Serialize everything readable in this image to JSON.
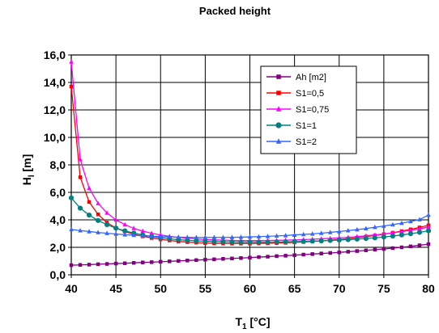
{
  "chart_data": {
    "type": "line",
    "title": "Packed height",
    "xlabel_main": "T",
    "xlabel_sub": "1",
    "xlabel_unit": " [°C]",
    "ylabel_main": "H",
    "ylabel_sub": "l",
    "ylabel_unit": " [m]",
    "xlim": [
      40,
      80
    ],
    "ylim": [
      0,
      16
    ],
    "x_ticks": [
      40,
      45,
      50,
      55,
      60,
      65,
      70,
      75,
      80
    ],
    "x_tick_labels": [
      "40",
      "45",
      "50",
      "55",
      "60",
      "65",
      "70",
      "75",
      "80"
    ],
    "y_ticks": [
      0,
      2,
      4,
      6,
      8,
      10,
      12,
      14,
      16
    ],
    "y_tick_labels": [
      "0,0",
      "2,0",
      "4,0",
      "6,0",
      "8,0",
      "10,0",
      "12,0",
      "14,0",
      "16,0"
    ],
    "grid": true,
    "legend_position": "top-right",
    "series": [
      {
        "name": "Ah  [m2]",
        "color": "#800080",
        "marker": "square",
        "x": [
          40,
          41,
          42,
          43,
          44,
          45,
          46,
          47,
          48,
          49,
          50,
          51,
          52,
          53,
          54,
          55,
          56,
          57,
          58,
          59,
          60,
          61,
          62,
          63,
          64,
          65,
          66,
          67,
          68,
          69,
          70,
          71,
          72,
          73,
          74,
          75,
          76,
          77,
          78,
          79,
          80
        ],
        "y": [
          0.7,
          0.72,
          0.74,
          0.77,
          0.79,
          0.82,
          0.84,
          0.87,
          0.9,
          0.92,
          0.95,
          0.98,
          1.01,
          1.04,
          1.07,
          1.1,
          1.13,
          1.16,
          1.19,
          1.22,
          1.25,
          1.29,
          1.32,
          1.36,
          1.39,
          1.43,
          1.47,
          1.51,
          1.55,
          1.59,
          1.63,
          1.68,
          1.73,
          1.78,
          1.83,
          1.88,
          1.94,
          2.0,
          2.07,
          2.15,
          2.23
        ]
      },
      {
        "name": "S1=0,5",
        "color": "#FF0000",
        "marker": "square",
        "x": [
          40,
          41,
          42,
          43,
          44,
          45,
          46,
          47,
          48,
          49,
          50,
          51,
          52,
          53,
          54,
          55,
          56,
          57,
          58,
          59,
          60,
          61,
          62,
          63,
          64,
          65,
          66,
          67,
          68,
          69,
          70,
          71,
          72,
          73,
          74,
          75,
          76,
          77,
          78,
          79,
          80
        ],
        "y": [
          13.7,
          7.1,
          5.3,
          4.4,
          3.8,
          3.4,
          3.15,
          2.95,
          2.8,
          2.68,
          2.58,
          2.5,
          2.43,
          2.38,
          2.34,
          2.31,
          2.29,
          2.28,
          2.27,
          2.27,
          2.27,
          2.28,
          2.29,
          2.31,
          2.33,
          2.36,
          2.39,
          2.43,
          2.47,
          2.52,
          2.57,
          2.63,
          2.7,
          2.78,
          2.86,
          2.96,
          3.06,
          3.18,
          3.31,
          3.45,
          3.6
        ]
      },
      {
        "name": "S1=0,75",
        "color": "#FF00FF",
        "marker": "triangle",
        "x": [
          40,
          41,
          42,
          43,
          44,
          45,
          46,
          47,
          48,
          49,
          50,
          51,
          52,
          53,
          54,
          55,
          56,
          57,
          58,
          59,
          60,
          61,
          62,
          63,
          64,
          65,
          66,
          67,
          68,
          69,
          70,
          71,
          72,
          73,
          74,
          75,
          76,
          77,
          78,
          79,
          80
        ],
        "y": [
          15.5,
          8.4,
          6.3,
          5.2,
          4.5,
          4.0,
          3.65,
          3.38,
          3.18,
          3.02,
          2.9,
          2.8,
          2.72,
          2.66,
          2.61,
          2.57,
          2.54,
          2.52,
          2.5,
          2.49,
          2.49,
          2.49,
          2.5,
          2.51,
          2.52,
          2.54,
          2.56,
          2.59,
          2.62,
          2.65,
          2.69,
          2.73,
          2.78,
          2.84,
          2.9,
          2.97,
          3.05,
          3.14,
          3.24,
          3.35,
          3.47
        ]
      },
      {
        "name": "S1=1",
        "color": "#008080",
        "marker": "circle",
        "x": [
          40,
          41,
          42,
          43,
          44,
          45,
          46,
          47,
          48,
          49,
          50,
          51,
          52,
          53,
          54,
          55,
          56,
          57,
          58,
          59,
          60,
          61,
          62,
          63,
          64,
          65,
          66,
          67,
          68,
          69,
          70,
          71,
          72,
          73,
          74,
          75,
          76,
          77,
          78,
          79,
          80
        ],
        "y": [
          5.6,
          4.85,
          4.35,
          3.95,
          3.65,
          3.4,
          3.2,
          3.04,
          2.9,
          2.79,
          2.7,
          2.62,
          2.56,
          2.51,
          2.47,
          2.44,
          2.42,
          2.4,
          2.39,
          2.38,
          2.38,
          2.38,
          2.38,
          2.39,
          2.4,
          2.41,
          2.43,
          2.45,
          2.47,
          2.5,
          2.53,
          2.56,
          2.6,
          2.64,
          2.69,
          2.75,
          2.82,
          2.9,
          2.99,
          3.09,
          3.2
        ]
      },
      {
        "name": "S1=2",
        "color": "#3366FF",
        "marker": "triangle",
        "x": [
          40,
          41,
          42,
          43,
          44,
          45,
          46,
          47,
          48,
          49,
          50,
          51,
          52,
          53,
          54,
          55,
          56,
          57,
          58,
          59,
          60,
          61,
          62,
          63,
          64,
          65,
          66,
          67,
          68,
          69,
          70,
          71,
          72,
          73,
          74,
          75,
          76,
          77,
          78,
          79,
          80
        ],
        "y": [
          3.3,
          3.22,
          3.15,
          3.08,
          3.02,
          2.97,
          2.92,
          2.88,
          2.84,
          2.81,
          2.78,
          2.76,
          2.74,
          2.73,
          2.72,
          2.72,
          2.72,
          2.72,
          2.73,
          2.74,
          2.76,
          2.78,
          2.8,
          2.83,
          2.86,
          2.9,
          2.94,
          2.98,
          3.03,
          3.09,
          3.15,
          3.22,
          3.29,
          3.37,
          3.46,
          3.55,
          3.65,
          3.76,
          3.88,
          4.02,
          4.35
        ]
      }
    ]
  }
}
